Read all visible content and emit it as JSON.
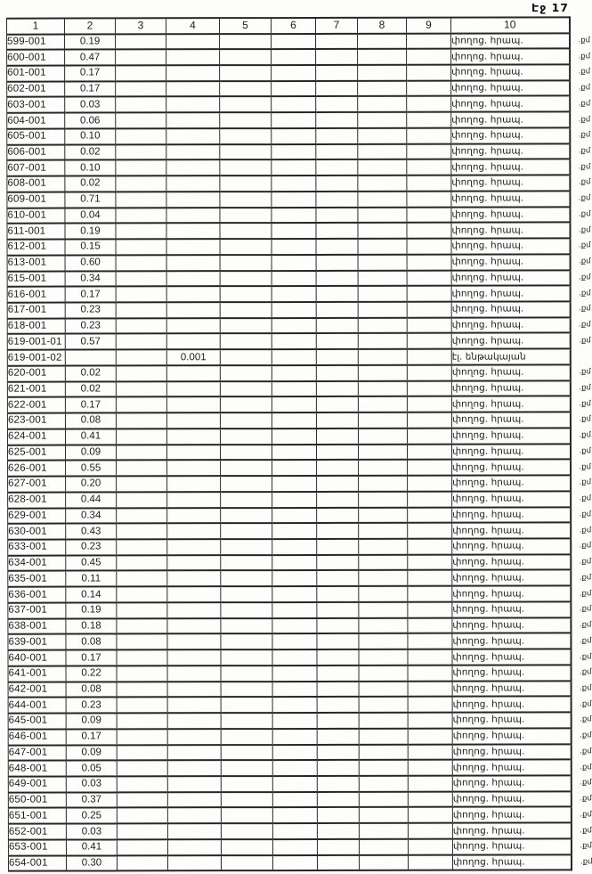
{
  "page": {
    "label": "Էջ 17"
  },
  "table": {
    "headers": [
      "1",
      "2",
      "3",
      "4",
      "5",
      "6",
      "7",
      "8",
      "9",
      "10"
    ],
    "margin_note": ".քմ",
    "row_keys": [
      "id",
      "v2",
      "v3",
      "v4",
      "v5",
      "v6",
      "v7",
      "v8",
      "v9",
      "note"
    ],
    "rows": [
      {
        "id": "599-001",
        "v2": "0.19",
        "note": "փողոց. հրապ.",
        "margin": true
      },
      {
        "id": "600-001",
        "v2": "0.47",
        "note": "փողոց. հրապ.",
        "margin": true
      },
      {
        "id": "601-001",
        "v2": "0.17",
        "note": "փողոց. հրապ.",
        "margin": true
      },
      {
        "id": "602-001",
        "v2": "0.17",
        "note": "փողոց. հրապ.",
        "margin": true
      },
      {
        "id": "603-001",
        "v2": "0.03",
        "note": "փողոց. հրապ.",
        "margin": true
      },
      {
        "id": "604-001",
        "v2": "0.06",
        "note": "փողոց. հրապ.",
        "margin": true
      },
      {
        "id": "605-001",
        "v2": "0.10",
        "note": "փողոց. հրապ.",
        "margin": true
      },
      {
        "id": "606-001",
        "v2": "0.02",
        "note": "փողոց. հրապ.",
        "margin": true
      },
      {
        "id": "607-001",
        "v2": "0.10",
        "note": "փողոց. հրապ.",
        "margin": true
      },
      {
        "id": "608-001",
        "v2": "0.02",
        "note": "փողոց. հրապ.",
        "margin": true
      },
      {
        "id": "609-001",
        "v2": "0.71",
        "note": "փողոց. հրապ.",
        "margin": true
      },
      {
        "id": "610-001",
        "v2": "0.04",
        "note": "փողոց. հրապ.",
        "margin": true
      },
      {
        "id": "611-001",
        "v2": "0.19",
        "note": "փողոց. հրապ.",
        "margin": true
      },
      {
        "id": "612-001",
        "v2": "0.15",
        "note": "փողոց. հրապ.",
        "margin": true
      },
      {
        "id": "613-001",
        "v2": "0.60",
        "note": "փողոց. հրապ.",
        "margin": true
      },
      {
        "id": "615-001",
        "v2": "0.34",
        "note": "փողոց. հրապ.",
        "margin": true
      },
      {
        "id": "616-001",
        "v2": "0.17",
        "note": "փողոց. հրապ.",
        "margin": true
      },
      {
        "id": "617-001",
        "v2": "0.23",
        "note": "փողոց. հրապ.",
        "margin": true
      },
      {
        "id": "618-001",
        "v2": "0.23",
        "note": "փողոց. հրապ.",
        "margin": true
      },
      {
        "id": "619-001-01",
        "v2": "0.57",
        "note": "փողոց. հրապ.",
        "margin": true
      },
      {
        "id": "619-001-02",
        "v4": "0.001",
        "note": "էլ. ենթակայան",
        "margin": false
      },
      {
        "id": "620-001",
        "v2": "0.02",
        "note": "փողոց. հրապ.",
        "margin": true
      },
      {
        "id": "621-001",
        "v2": "0.02",
        "note": "փողոց. հրապ.",
        "margin": true
      },
      {
        "id": "622-001",
        "v2": "0.17",
        "note": "փողոց. հրապ.",
        "margin": true
      },
      {
        "id": "623-001",
        "v2": "0.08",
        "note": "փողոց. հրապ.",
        "margin": true
      },
      {
        "id": "624-001",
        "v2": "0.41",
        "note": "փողոց. հրապ.",
        "margin": true
      },
      {
        "id": "625-001",
        "v2": "0.09",
        "note": "փողոց. հրապ.",
        "margin": true
      },
      {
        "id": "626-001",
        "v2": "0.55",
        "note": "փողոց. հրապ.",
        "margin": true
      },
      {
        "id": "627-001",
        "v2": "0.20",
        "note": "փողոց. հրապ.",
        "margin": true
      },
      {
        "id": "628-001",
        "v2": "0.44",
        "note": "փողոց. հրապ.",
        "margin": true
      },
      {
        "id": "629-001",
        "v2": "0.34",
        "note": "փողոց. հրապ.",
        "margin": true
      },
      {
        "id": "630-001",
        "v2": "0.43",
        "note": "փողոց. հրապ.",
        "margin": true
      },
      {
        "id": "633-001",
        "v2": "0.23",
        "note": "փողոց. հրապ.",
        "margin": true
      },
      {
        "id": "634-001",
        "v2": "0.45",
        "note": "փողոց. հրապ.",
        "margin": true
      },
      {
        "id": "635-001",
        "v2": "0.11",
        "note": "փողոց. հրապ.",
        "margin": true
      },
      {
        "id": "636-001",
        "v2": "0.14",
        "note": "փողոց. հրապ.",
        "margin": true
      },
      {
        "id": "637-001",
        "v2": "0.19",
        "note": "փողոց. հրապ.",
        "margin": true
      },
      {
        "id": "638-001",
        "v2": "0.18",
        "note": "փողոց. հրապ.",
        "margin": true
      },
      {
        "id": "639-001",
        "v2": "0.08",
        "note": "փողոց. հրապ.",
        "margin": true
      },
      {
        "id": "640-001",
        "v2": "0.17",
        "note": "փողոց. հրապ.",
        "margin": true
      },
      {
        "id": "641-001",
        "v2": "0.22",
        "note": "փողոց. հրապ.",
        "margin": true
      },
      {
        "id": "642-001",
        "v2": "0.08",
        "note": "փողոց. հրապ.",
        "margin": true
      },
      {
        "id": "644-001",
        "v2": "0.23",
        "note": "փողոց. հրապ.",
        "margin": true
      },
      {
        "id": "645-001",
        "v2": "0.09",
        "note": "փողոց. հրապ.",
        "margin": true
      },
      {
        "id": "646-001",
        "v2": "0.17",
        "note": "փողոց. հրապ.",
        "margin": true
      },
      {
        "id": "647-001",
        "v2": "0.09",
        "note": "փողոց. հրապ.",
        "margin": true
      },
      {
        "id": "648-001",
        "v2": "0.05",
        "note": "փողոց. հրապ.",
        "margin": true
      },
      {
        "id": "649-001",
        "v2": "0.03",
        "note": "փողոց. հրապ.",
        "margin": true
      },
      {
        "id": "650-001",
        "v2": "0.37",
        "note": "փողոց. հրապ.",
        "margin": true
      },
      {
        "id": "651-001",
        "v2": "0.25",
        "note": "փողոց. հրապ.",
        "margin": true
      },
      {
        "id": "652-001",
        "v2": "0.03",
        "note": "փողոց. հրապ.",
        "margin": true
      },
      {
        "id": "653-001",
        "v2": "0.41",
        "note": "փողոց. հրապ.",
        "margin": true
      },
      {
        "id": "654-001",
        "v2": "0.30",
        "note": "փողոց. հրապ.",
        "margin": true
      }
    ]
  }
}
